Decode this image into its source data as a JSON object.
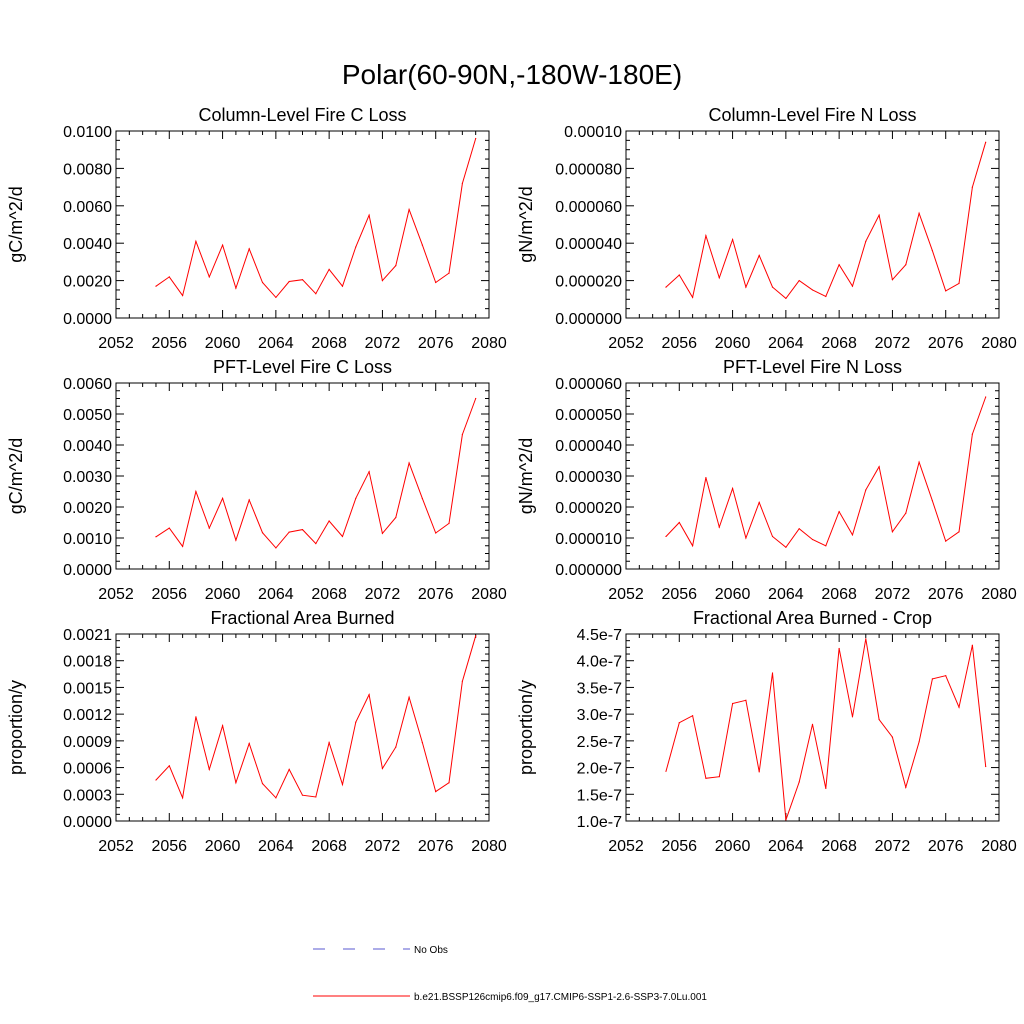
{
  "figure": {
    "title": "Polar(60-90N,-180W-180E)"
  },
  "legend": {
    "entries": [
      {
        "label": "No Obs",
        "color": "#5a5ad0",
        "dash": true
      },
      {
        "label": "b.e21.BSSP126cmip6.f09_g17.CMIP6-SSP1-2.6-SSP3-7.0Lu.001",
        "color": "#ff0000",
        "dash": false
      }
    ]
  },
  "chart_data": [
    {
      "type": "line",
      "title": "Column-Level Fire C Loss",
      "ylabel": "gC/m^2/d",
      "xlabel": "",
      "xlim": [
        2052,
        2080
      ],
      "ylim": [
        0,
        0.01
      ],
      "xticks": [
        2052,
        2056,
        2060,
        2064,
        2068,
        2072,
        2076,
        2080
      ],
      "yticks": [
        0,
        0.002,
        0.004,
        0.006,
        0.008,
        0.01
      ],
      "ytick_labels": [
        "0.0000",
        "0.0020",
        "0.0040",
        "0.0060",
        "0.0080",
        "0.0100"
      ],
      "x": [
        2055,
        2056,
        2057,
        2058,
        2059,
        2060,
        2061,
        2062,
        2063,
        2064,
        2065,
        2066,
        2067,
        2068,
        2069,
        2070,
        2071,
        2072,
        2073,
        2074,
        2075,
        2076,
        2077,
        2078,
        2079
      ],
      "series": [
        {
          "color": "#ff0000",
          "values": [
            0.0017,
            0.0022,
            0.0012,
            0.0041,
            0.0022,
            0.0039,
            0.0016,
            0.0037,
            0.0019,
            0.0011,
            0.00195,
            0.00205,
            0.0013,
            0.0026,
            0.0017,
            0.0038,
            0.0055,
            0.002,
            0.0028,
            0.0058,
            0.0039,
            0.0019,
            0.0024,
            0.0072,
            0.0096
          ]
        }
      ]
    },
    {
      "type": "line",
      "title": "Column-Level Fire N Loss",
      "ylabel": "gN/m^2/d",
      "xlabel": "",
      "xlim": [
        2052,
        2080
      ],
      "ylim": [
        0,
        0.0001
      ],
      "xticks": [
        2052,
        2056,
        2060,
        2064,
        2068,
        2072,
        2076,
        2080
      ],
      "yticks": [
        0,
        2e-05,
        4e-05,
        6e-05,
        8e-05,
        0.0001
      ],
      "ytick_labels": [
        "0.000000",
        "0.000020",
        "0.000040",
        "0.000060",
        "0.000080",
        "0.00010"
      ],
      "x": [
        2055,
        2056,
        2057,
        2058,
        2059,
        2060,
        2061,
        2062,
        2063,
        2064,
        2065,
        2066,
        2067,
        2068,
        2069,
        2070,
        2071,
        2072,
        2073,
        2074,
        2075,
        2076,
        2077,
        2078,
        2079
      ],
      "series": [
        {
          "color": "#ff0000",
          "values": [
            1.65e-05,
            2.3e-05,
            1.1e-05,
            4.4e-05,
            2.15e-05,
            4.2e-05,
            1.65e-05,
            3.35e-05,
            1.65e-05,
            1.05e-05,
            2e-05,
            1.5e-05,
            1.15e-05,
            2.85e-05,
            1.7e-05,
            4.1e-05,
            5.5e-05,
            2.05e-05,
            2.85e-05,
            5.6e-05,
            3.6e-05,
            1.45e-05,
            1.85e-05,
            7e-05,
            9.4e-05
          ]
        }
      ]
    },
    {
      "type": "line",
      "title": "PFT-Level Fire C Loss",
      "ylabel": "gC/m^2/d",
      "xlabel": "",
      "xlim": [
        2052,
        2080
      ],
      "ylim": [
        0,
        0.006
      ],
      "xticks": [
        2052,
        2056,
        2060,
        2064,
        2068,
        2072,
        2076,
        2080
      ],
      "yticks": [
        0,
        0.001,
        0.002,
        0.003,
        0.004,
        0.005,
        0.006
      ],
      "ytick_labels": [
        "0.0000",
        "0.0010",
        "0.0020",
        "0.0030",
        "0.0040",
        "0.0050",
        "0.0060"
      ],
      "x": [
        2055,
        2056,
        2057,
        2058,
        2059,
        2060,
        2061,
        2062,
        2063,
        2064,
        2065,
        2066,
        2067,
        2068,
        2069,
        2070,
        2071,
        2072,
        2073,
        2074,
        2075,
        2076,
        2077,
        2078,
        2079
      ],
      "series": [
        {
          "color": "#ff0000",
          "values": [
            0.00104,
            0.00132,
            0.00073,
            0.0025,
            0.00132,
            0.00228,
            0.00093,
            0.00223,
            0.00117,
            0.00068,
            0.00119,
            0.00127,
            0.00082,
            0.00155,
            0.00105,
            0.00228,
            0.00314,
            0.00115,
            0.00166,
            0.00342,
            0.00227,
            0.00116,
            0.00147,
            0.00434,
            0.0055
          ]
        }
      ]
    },
    {
      "type": "line",
      "title": "PFT-Level Fire N Loss",
      "ylabel": "gN/m^2/d",
      "xlabel": "",
      "xlim": [
        2052,
        2080
      ],
      "ylim": [
        0,
        6e-05
      ],
      "xticks": [
        2052,
        2056,
        2060,
        2064,
        2068,
        2072,
        2076,
        2080
      ],
      "yticks": [
        0,
        1e-05,
        2e-05,
        3e-05,
        4e-05,
        5e-05,
        6e-05
      ],
      "ytick_labels": [
        "0.000000",
        "0.000010",
        "0.000020",
        "0.000030",
        "0.000040",
        "0.000050",
        "0.000060"
      ],
      "x": [
        2055,
        2056,
        2057,
        2058,
        2059,
        2060,
        2061,
        2062,
        2063,
        2064,
        2065,
        2066,
        2067,
        2068,
        2069,
        2070,
        2071,
        2072,
        2073,
        2074,
        2075,
        2076,
        2077,
        2078,
        2079
      ],
      "series": [
        {
          "color": "#ff0000",
          "values": [
            1.05e-05,
            1.5e-05,
            7.5e-06,
            2.95e-05,
            1.35e-05,
            2.6e-05,
            1e-05,
            2.15e-05,
            1.05e-05,
            7e-06,
            1.3e-05,
            9.5e-06,
            7.5e-06,
            1.85e-05,
            1.1e-05,
            2.55e-05,
            3.3e-05,
            1.2e-05,
            1.8e-05,
            3.45e-05,
            2.2e-05,
            9e-06,
            1.2e-05,
            4.35e-05,
            5.55e-05
          ]
        }
      ]
    },
    {
      "type": "line",
      "title": "Fractional Area Burned",
      "ylabel": "proportion/y",
      "xlabel": "",
      "xlim": [
        2052,
        2080
      ],
      "ylim": [
        0,
        0.0021
      ],
      "xticks": [
        2052,
        2056,
        2060,
        2064,
        2068,
        2072,
        2076,
        2080
      ],
      "yticks": [
        0,
        0.0003,
        0.0006,
        0.0009,
        0.0012,
        0.0015,
        0.0018,
        0.0021
      ],
      "ytick_labels": [
        "0.0000",
        "0.0003",
        "0.0006",
        "0.0009",
        "0.0012",
        "0.0015",
        "0.0018",
        "0.0021"
      ],
      "x": [
        2055,
        2056,
        2057,
        2058,
        2059,
        2060,
        2061,
        2062,
        2063,
        2064,
        2065,
        2066,
        2067,
        2068,
        2069,
        2070,
        2071,
        2072,
        2073,
        2074,
        2075,
        2076,
        2077,
        2078,
        2079
      ],
      "series": [
        {
          "color": "#ff0000",
          "values": [
            0.00046,
            0.00062,
            0.00026,
            0.00117,
            0.00058,
            0.00107,
            0.00043,
            0.00087,
            0.00042,
            0.00026,
            0.00058,
            0.00029,
            0.00027,
            0.00088,
            0.00041,
            0.00111,
            0.00142,
            0.00059,
            0.00083,
            0.00139,
            0.00088,
            0.00033,
            0.00043,
            0.00157,
            0.00208
          ]
        }
      ]
    },
    {
      "type": "line",
      "title": "Fractional Area Burned - Crop",
      "ylabel": "proportion/y",
      "xlabel": "",
      "xlim": [
        2052,
        2080
      ],
      "ylim": [
        1e-07,
        4.5e-07
      ],
      "xticks": [
        2052,
        2056,
        2060,
        2064,
        2068,
        2072,
        2076,
        2080
      ],
      "yticks": [
        1e-07,
        1.5e-07,
        2e-07,
        2.5e-07,
        3e-07,
        3.5e-07,
        4e-07,
        4.5e-07
      ],
      "ytick_labels": [
        "1.0e-7",
        "1.5e-7",
        "2.0e-7",
        "2.5e-7",
        "3.0e-7",
        "3.5e-7",
        "4.0e-7",
        "4.5e-7"
      ],
      "x": [
        2055,
        2056,
        2057,
        2058,
        2059,
        2060,
        2061,
        2062,
        2063,
        2064,
        2065,
        2066,
        2067,
        2068,
        2069,
        2070,
        2071,
        2072,
        2073,
        2074,
        2075,
        2076,
        2077,
        2078,
        2079
      ],
      "series": [
        {
          "color": "#ff0000",
          "values": [
            1.93e-07,
            2.84e-07,
            2.97e-07,
            1.8e-07,
            1.83e-07,
            3.2e-07,
            3.26e-07,
            1.92e-07,
            3.77e-07,
            1.02e-07,
            1.73e-07,
            2.81e-07,
            1.61e-07,
            4.23e-07,
            2.95e-07,
            4.41e-07,
            2.9e-07,
            2.57e-07,
            1.63e-07,
            2.48e-07,
            3.66e-07,
            3.72e-07,
            3.13e-07,
            4.29e-07,
            2.02e-07
          ]
        }
      ]
    }
  ]
}
